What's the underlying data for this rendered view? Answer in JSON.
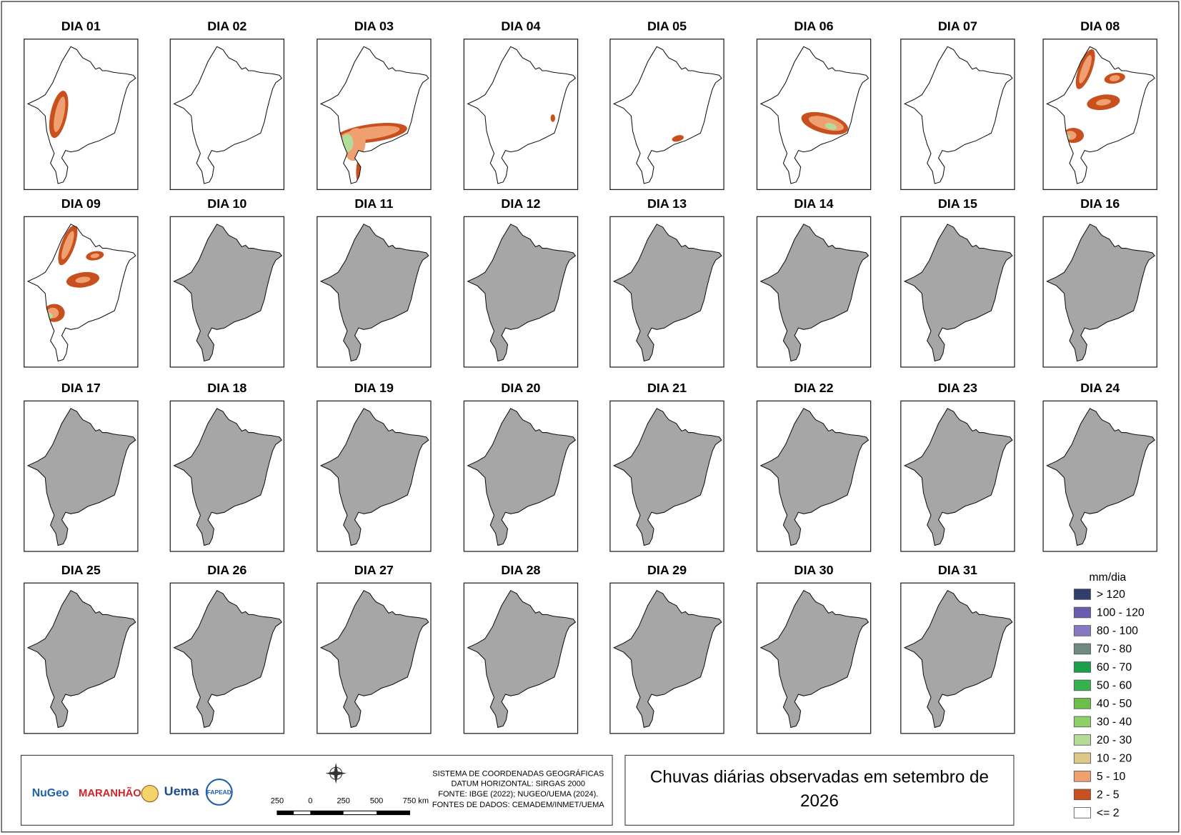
{
  "title": [
    "Chuvas diárias observadas em setembro de",
    "2026"
  ],
  "panels": [
    "DIA 01",
    "DIA 02",
    "DIA 03",
    "DIA 04",
    "DIA 05",
    "DIA 06",
    "DIA 07",
    "DIA 08",
    "DIA 09",
    "DIA 10",
    "DIA 11",
    "DIA 12",
    "DIA 13",
    "DIA 14",
    "DIA 15",
    "DIA 16",
    "DIA 17",
    "DIA 18",
    "DIA 19",
    "DIA 20",
    "DIA 21",
    "DIA 22",
    "DIA 23",
    "DIA 24",
    "DIA 25",
    "DIA 26",
    "DIA 27",
    "DIA 28",
    "DIA 29",
    "DIA 30",
    "DIA 31"
  ],
  "legend": {
    "title": "mm/dia",
    "items": [
      {
        "label": "> 120",
        "color": "#2e3f6e"
      },
      {
        "label": "100 - 120",
        "color": "#6a5cac"
      },
      {
        "label": "80 - 100",
        "color": "#8878c4"
      },
      {
        "label": "70 - 80",
        "color": "#6f8a82"
      },
      {
        "label": "60 - 70",
        "color": "#1aa04a"
      },
      {
        "label": "50 - 60",
        "color": "#35b14f"
      },
      {
        "label": "40 - 50",
        "color": "#6cc04a"
      },
      {
        "label": "30 - 40",
        "color": "#8ecf6a"
      },
      {
        "label": "20 - 30",
        "color": "#b3dc98"
      },
      {
        "label": "10 - 20",
        "color": "#dcc98a"
      },
      {
        "label": "5 - 10",
        "color": "#f0a070"
      },
      {
        "label": "2 - 5",
        "color": "#c8501e"
      },
      {
        "label": "<= 2",
        "color": "#ffffff"
      }
    ]
  },
  "footer": {
    "logos": [
      "NuGeo",
      "MARANHÃO",
      "Uema",
      "FAPEAD"
    ],
    "scale": [
      "250",
      "0",
      "250",
      "500",
      "750 km"
    ],
    "credits": [
      "SISTEMA DE COORDENADAS GEOGRÁFICAS",
      "DATUM HORIZONTAL: SIRGAS 2000",
      "FONTE: IBGE (2022); NUGEO/UEMA (2024).",
      "FONTES DE DADOS: CEMADEM/INMET/UEMA"
    ]
  }
}
